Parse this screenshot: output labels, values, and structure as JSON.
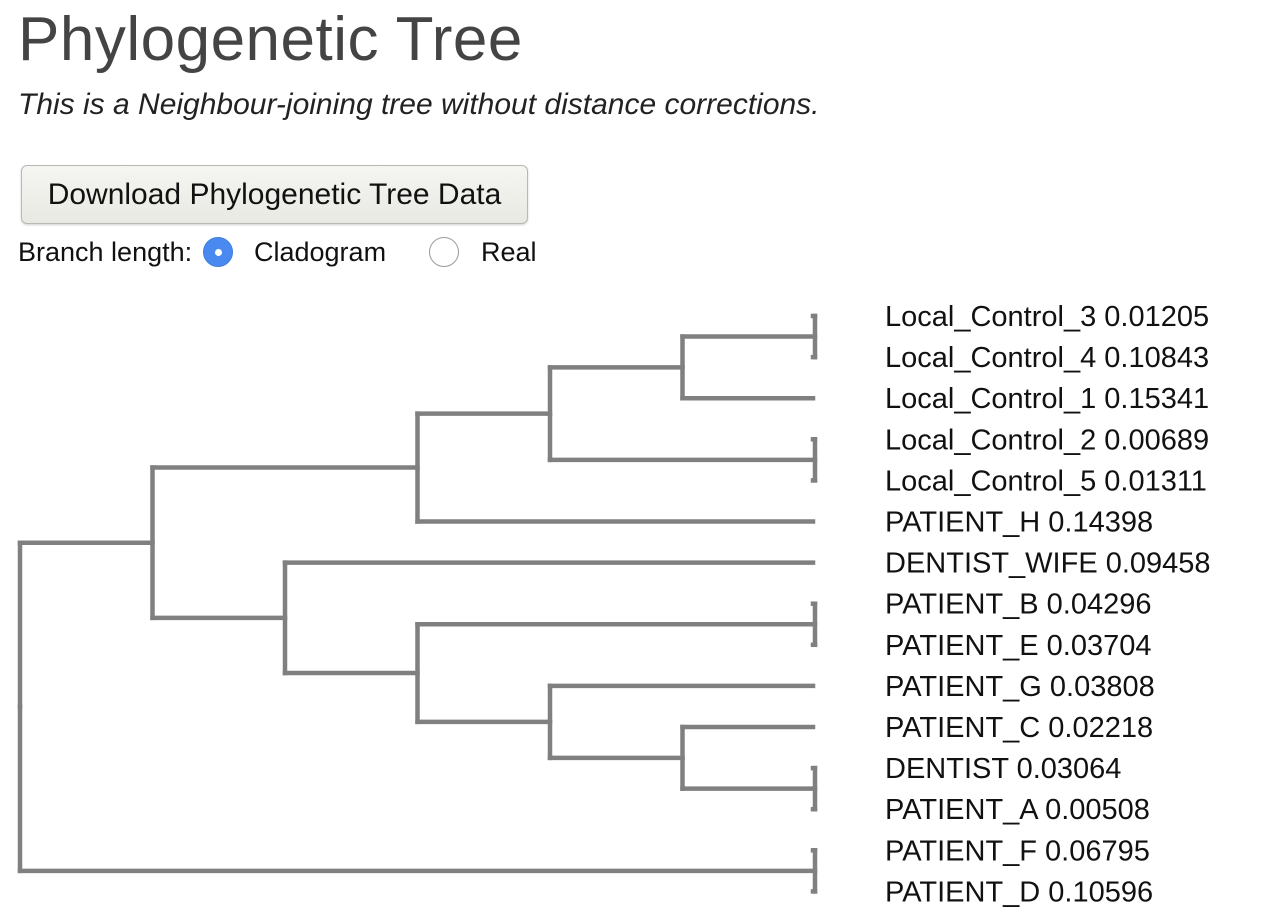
{
  "header": {
    "title": "Phylogenetic Tree",
    "subtitle": "This is a Neighbour-joining tree without distance corrections."
  },
  "toolbar": {
    "download_label": "Download Phylogenetic Tree Data"
  },
  "branch_length": {
    "label": "Branch length:",
    "options": [
      {
        "label": "Cladogram",
        "selected": true
      },
      {
        "label": "Real",
        "selected": false
      }
    ]
  },
  "colors": {
    "branch": "#808080",
    "radio_selected": "#4a8af0"
  },
  "tree": {
    "layout": "cladogram",
    "leaves": [
      {
        "name": "Local_Control_3",
        "value": "0.01205"
      },
      {
        "name": "Local_Control_4",
        "value": "0.10843"
      },
      {
        "name": "Local_Control_1",
        "value": "0.15341"
      },
      {
        "name": "Local_Control_2",
        "value": "0.00689"
      },
      {
        "name": "Local_Control_5",
        "value": "0.01311"
      },
      {
        "name": "PATIENT_H",
        "value": "0.14398"
      },
      {
        "name": "DENTIST_WIFE",
        "value": "0.09458"
      },
      {
        "name": "PATIENT_B",
        "value": "0.04296"
      },
      {
        "name": "PATIENT_E",
        "value": "0.03704"
      },
      {
        "name": "PATIENT_G",
        "value": "0.03808"
      },
      {
        "name": "PATIENT_C",
        "value": "0.02218"
      },
      {
        "name": "DENTIST",
        "value": "0.03064"
      },
      {
        "name": "PATIENT_A",
        "value": "0.00508"
      },
      {
        "name": "PATIENT_F",
        "value": "0.06795"
      },
      {
        "name": "PATIENT_D",
        "value": "0.10596"
      }
    ],
    "topology": [
      [
        [
          [
            [
              [
                "Local_Control_3",
                "Local_Control_4"
              ],
              "Local_Control_1"
            ],
            [
              "Local_Control_2",
              "Local_Control_5"
            ]
          ],
          "PATIENT_H"
        ],
        [
          "DENTIST_WIFE",
          [
            [
              "PATIENT_B",
              "PATIENT_E"
            ],
            [
              "PATIENT_G",
              [
                "PATIENT_C",
                [
                  "DENTIST",
                  "PATIENT_A"
                ]
              ]
            ]
          ]
        ]
      ],
      [
        "PATIENT_F",
        "PATIENT_D"
      ]
    ]
  }
}
